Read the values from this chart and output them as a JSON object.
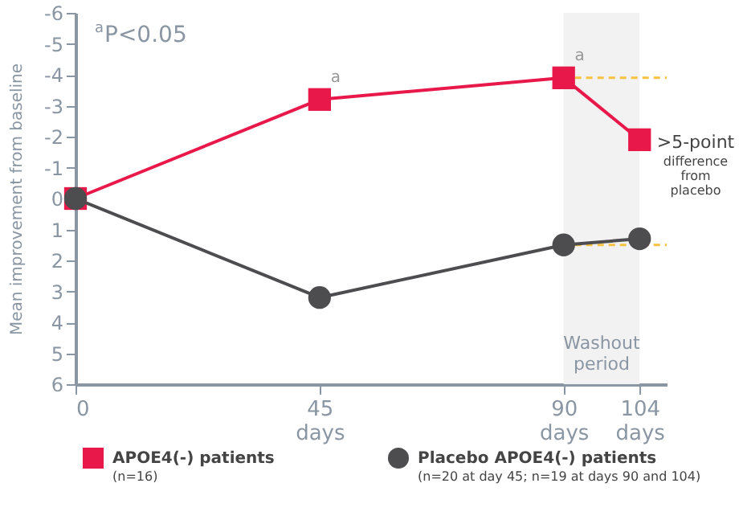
{
  "chart_data": {
    "type": "line",
    "ylabel": "Mean improvement from baseline",
    "x": [
      0,
      45,
      90,
      104
    ],
    "xlim": [
      0,
      109
    ],
    "xticks": [
      0,
      {
        "value": 45,
        "label": "45 days"
      },
      {
        "value": 90,
        "label": "90 days"
      },
      {
        "value": 104,
        "label": "104 days"
      }
    ],
    "ylim": [
      6,
      -6
    ],
    "yticks": [
      -6,
      -5,
      -4,
      -3,
      -2,
      -1,
      0,
      1,
      2,
      3,
      4,
      5,
      6
    ],
    "series": [
      {
        "name": "APOE4(-) patients",
        "color": "#e8194a",
        "marker": "square",
        "values": [
          0,
          -3.2,
          -3.9,
          -1.9
        ]
      },
      {
        "name": "Placebo APOE4(-) patients",
        "color": "#4d4d4f",
        "marker": "circle",
        "values": [
          0,
          3.2,
          1.5,
          1.3
        ]
      }
    ],
    "bands": [
      {
        "axis": "x",
        "from": 90,
        "to": 104,
        "label": "Washout period",
        "color": "#f2f2f2"
      }
    ],
    "ref_lines": [
      {
        "axis": "y",
        "value": -3.9,
        "color": "#f5c242",
        "line_style": "dashed"
      },
      {
        "axis": "y",
        "value": 1.5,
        "color": "#f5c242",
        "line_style": "dashed"
      }
    ],
    "annotations": [
      "$^{a}$P<0.05",
      {
        "text": "a",
        "x": 45,
        "y": -3.2
      },
      {
        "text": "a",
        "x": 90,
        "y": -3.9
      },
      ">5-point difference from placebo",
      "(n=16)",
      "(n=20 at day 45; n=19 at days 90 and 104)"
    ],
    "grid": false,
    "legend": "bottom",
    "line_style": "solid"
  }
}
